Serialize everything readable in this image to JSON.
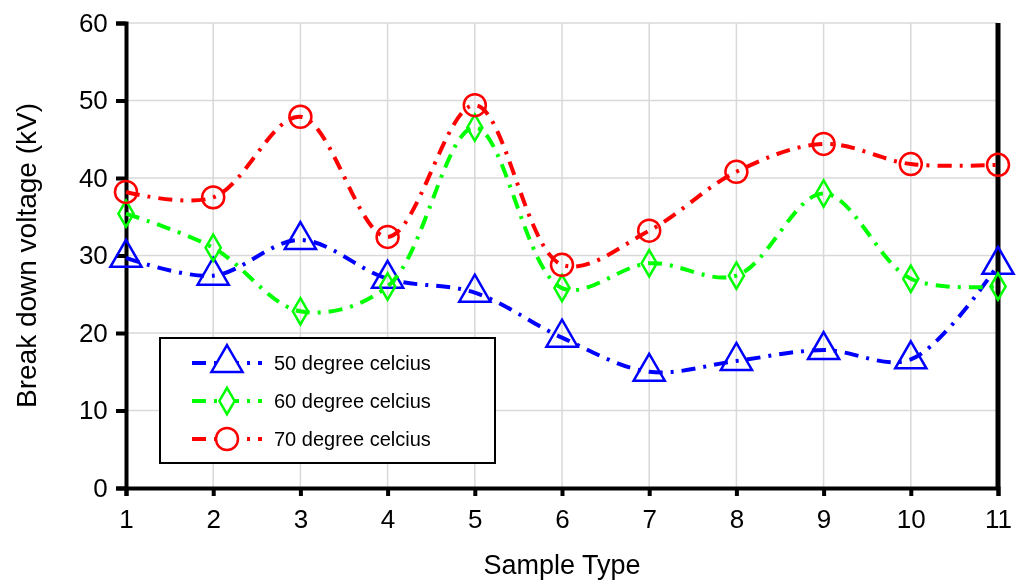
{
  "chart_data": {
    "type": "line",
    "xlabel": "Sample Type",
    "ylabel": "Break down voltage (kV)",
    "x": [
      1,
      2,
      3,
      4,
      5,
      6,
      7,
      8,
      9,
      10,
      11
    ],
    "xlim": [
      1,
      11
    ],
    "xticks": [
      1,
      2,
      3,
      4,
      5,
      6,
      7,
      8,
      9,
      10,
      11
    ],
    "ylim": [
      0,
      60
    ],
    "yticks": [
      0,
      10,
      20,
      30,
      40,
      50,
      60
    ],
    "grid": true,
    "legend": "bottom left",
    "line_style": "dashed",
    "series": [
      {
        "name": "50 degree celcius",
        "color": "#0000ff",
        "marker": "triangle",
        "values": [
          29.7,
          27.4,
          32,
          27,
          25.2,
          19.4,
          15,
          16.4,
          17.8,
          16.6,
          28.8
        ]
      },
      {
        "name": "60 degree celcius",
        "color": "#00ff00",
        "marker": "diamond",
        "values": [
          35.4,
          31,
          22.8,
          26,
          46.5,
          25.8,
          29,
          27.4,
          38,
          27,
          26
        ]
      },
      {
        "name": "70 degree celcius",
        "color": "#ff0000",
        "marker": "circle",
        "values": [
          38.2,
          37.5,
          47.9,
          32.4,
          49.4,
          28.8,
          33.2,
          40.8,
          44.4,
          41.8,
          41.7
        ]
      }
    ]
  }
}
